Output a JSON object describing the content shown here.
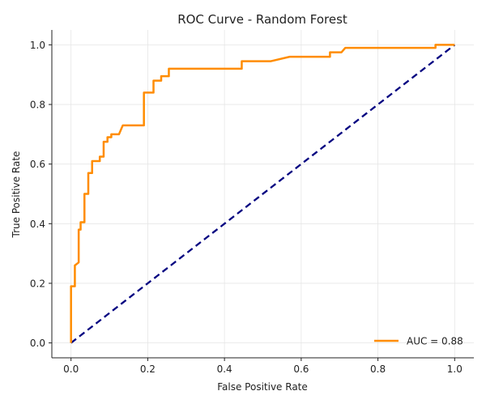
{
  "chart_data": {
    "type": "line",
    "title": "ROC Curve - Random Forest",
    "xlabel": "False Positive Rate",
    "ylabel": "True Positive Rate",
    "xlim": [
      -0.05,
      1.05
    ],
    "ylim": [
      -0.05,
      1.05
    ],
    "xticks": [
      0.0,
      0.2,
      0.4,
      0.6,
      0.8,
      1.0
    ],
    "yticks": [
      0.0,
      0.2,
      0.4,
      0.6,
      0.8,
      1.0
    ],
    "xtick_labels": [
      "0.0",
      "0.2",
      "0.4",
      "0.6",
      "0.8",
      "1.0"
    ],
    "ytick_labels": [
      "0.0",
      "0.2",
      "0.4",
      "0.6",
      "0.8",
      "1.0"
    ],
    "grid": true,
    "legend_position": "bottom-right",
    "series": [
      {
        "name": "AUC = 0.88",
        "color": "#ff8c00",
        "style": "solid",
        "x": [
          0.0,
          0.0,
          0.0,
          0.01,
          0.01,
          0.02,
          0.02,
          0.025,
          0.025,
          0.035,
          0.035,
          0.045,
          0.045,
          0.055,
          0.055,
          0.075,
          0.075,
          0.085,
          0.085,
          0.095,
          0.095,
          0.105,
          0.105,
          0.125,
          0.135,
          0.19,
          0.19,
          0.215,
          0.215,
          0.235,
          0.235,
          0.255,
          0.255,
          0.445,
          0.445,
          0.52,
          0.57,
          0.675,
          0.675,
          0.705,
          0.715,
          0.95,
          0.95,
          1.0
        ],
        "y": [
          0.0,
          0.0,
          0.19,
          0.19,
          0.26,
          0.27,
          0.38,
          0.38,
          0.405,
          0.405,
          0.5,
          0.5,
          0.57,
          0.57,
          0.61,
          0.61,
          0.625,
          0.625,
          0.675,
          0.675,
          0.69,
          0.69,
          0.7,
          0.7,
          0.73,
          0.73,
          0.84,
          0.84,
          0.88,
          0.88,
          0.895,
          0.895,
          0.92,
          0.92,
          0.945,
          0.945,
          0.96,
          0.96,
          0.975,
          0.975,
          0.99,
          0.99,
          1.0,
          1.0
        ]
      },
      {
        "name": "",
        "color": "#000080",
        "style": "dashed",
        "x": [
          0.0,
          1.0
        ],
        "y": [
          0.0,
          1.0
        ]
      }
    ]
  }
}
